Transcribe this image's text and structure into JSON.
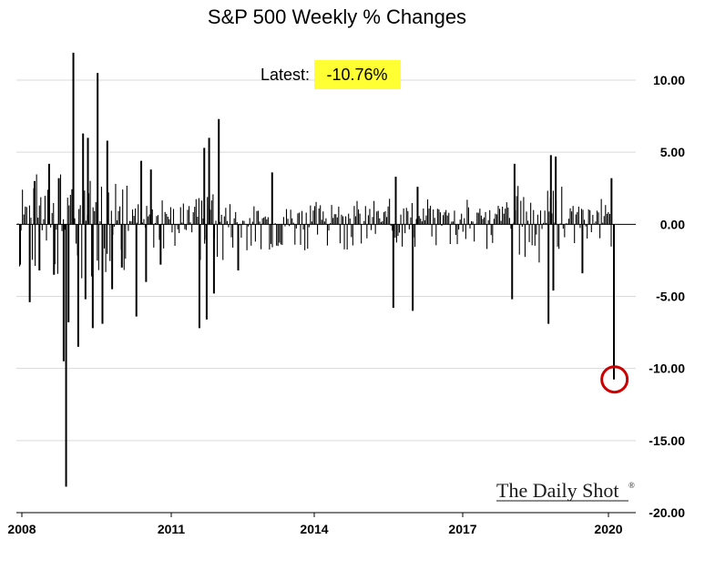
{
  "chart_data": {
    "type": "bar",
    "title": "S&P 500 Weekly % Changes",
    "xlabel": "",
    "ylabel": "",
    "ylim": [
      -20,
      12.5
    ],
    "y_ticks": [
      "10.00",
      "5.00",
      "0.00",
      "-5.00",
      "-10.00",
      "-15.00",
      "-20.00"
    ],
    "x_ticks": [
      "2008",
      "2011",
      "2014",
      "2017",
      "2020"
    ],
    "y_axis_side": "right",
    "grid": true,
    "annotation": {
      "label": "Latest:",
      "value": "-10.76%",
      "highlight_color": "#ffff33"
    },
    "marker": {
      "x": 2020.2,
      "y": -10.76,
      "color": "#cc0000"
    },
    "bar_color": "#000000",
    "series": [
      {
        "x": [
          2007.9,
          2008.1,
          2008.2,
          2008.3,
          2008.5,
          2008.6,
          2008.7,
          2008.8,
          2008.85,
          2008.9,
          2009.0,
          2009.1,
          2009.2,
          2009.25,
          2009.3,
          2009.4,
          2009.5,
          2009.6,
          2009.7,
          2009.8,
          2010.0,
          2010.3,
          2010.4,
          2010.5,
          2010.6,
          2010.8,
          2011.6,
          2011.7,
          2011.75,
          2011.8,
          2011.9,
          2012.0,
          2012.4,
          2013.1,
          2015.6,
          2015.65,
          2016.0,
          2016.1,
          2018.05,
          2018.1,
          2018.8,
          2018.85,
          2018.9,
          2018.95,
          2019.5,
          2020.1,
          2020.15
        ],
        "y": [
          -2.8,
          -5.4,
          3.0,
          -3.2,
          4.2,
          -3.5,
          3.2,
          -9.5,
          -18.2,
          -6.8,
          11.9,
          -8.5,
          6.3,
          -5.2,
          6.0,
          -7.2,
          10.5,
          -6.9,
          5.8,
          -4.5,
          -3.0,
          -6.4,
          4.4,
          -4.0,
          3.8,
          -2.8,
          -7.2,
          5.3,
          -6.6,
          6.0,
          -4.8,
          7.3,
          -3.2,
          3.6,
          -5.8,
          3.3,
          -6.0,
          2.6,
          -5.2,
          4.2,
          -6.9,
          4.8,
          -4.6,
          4.7,
          -3.4,
          3.2,
          -10.76
        ]
      }
    ]
  }
}
